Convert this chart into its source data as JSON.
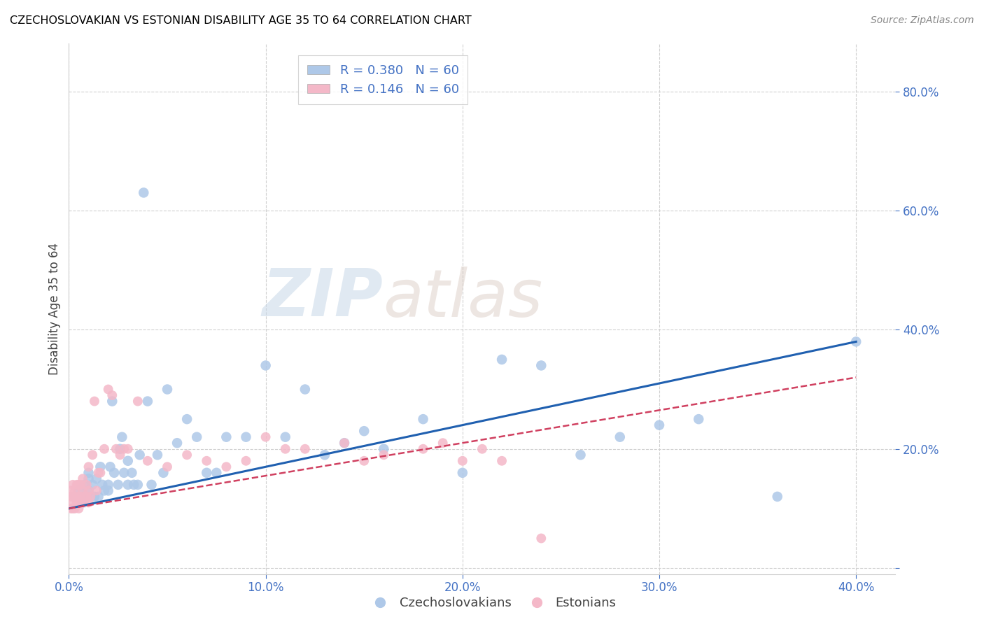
{
  "title": "CZECHOSLOVAKIAN VS ESTONIAN DISABILITY AGE 35 TO 64 CORRELATION CHART",
  "source": "Source: ZipAtlas.com",
  "ylabel": "Disability Age 35 to 64",
  "xlim": [
    0.0,
    0.42
  ],
  "ylim": [
    -0.01,
    0.88
  ],
  "ytick_values": [
    0.0,
    0.2,
    0.4,
    0.6,
    0.8
  ],
  "xtick_values": [
    0.0,
    0.1,
    0.2,
    0.3,
    0.4
  ],
  "blue_R": 0.38,
  "pink_R": 0.146,
  "blue_N": 60,
  "pink_N": 60,
  "blue_color": "#aec8e8",
  "pink_color": "#f4b8c8",
  "blue_line_color": "#2060b0",
  "pink_line_color": "#d04060",
  "grid_color": "#d0d0d0",
  "watermark_zip": "ZIP",
  "watermark_atlas": "atlas",
  "blue_scatter_x": [
    0.003,
    0.005,
    0.007,
    0.008,
    0.009,
    0.01,
    0.01,
    0.01,
    0.012,
    0.013,
    0.014,
    0.015,
    0.016,
    0.017,
    0.018,
    0.02,
    0.02,
    0.021,
    0.022,
    0.023,
    0.025,
    0.026,
    0.027,
    0.028,
    0.03,
    0.03,
    0.032,
    0.033,
    0.035,
    0.036,
    0.038,
    0.04,
    0.042,
    0.045,
    0.048,
    0.05,
    0.055,
    0.06,
    0.065,
    0.07,
    0.075,
    0.08,
    0.09,
    0.1,
    0.11,
    0.12,
    0.13,
    0.14,
    0.15,
    0.16,
    0.18,
    0.2,
    0.22,
    0.24,
    0.26,
    0.28,
    0.3,
    0.32,
    0.36,
    0.4
  ],
  "blue_scatter_y": [
    0.12,
    0.13,
    0.11,
    0.14,
    0.12,
    0.13,
    0.15,
    0.16,
    0.14,
    0.12,
    0.15,
    0.12,
    0.17,
    0.14,
    0.13,
    0.13,
    0.14,
    0.17,
    0.28,
    0.16,
    0.14,
    0.2,
    0.22,
    0.16,
    0.14,
    0.18,
    0.16,
    0.14,
    0.14,
    0.19,
    0.63,
    0.28,
    0.14,
    0.19,
    0.16,
    0.3,
    0.21,
    0.25,
    0.22,
    0.16,
    0.16,
    0.22,
    0.22,
    0.34,
    0.22,
    0.3,
    0.19,
    0.21,
    0.23,
    0.2,
    0.25,
    0.16,
    0.35,
    0.34,
    0.19,
    0.22,
    0.24,
    0.25,
    0.12,
    0.38
  ],
  "pink_scatter_x": [
    0.001,
    0.001,
    0.001,
    0.002,
    0.002,
    0.002,
    0.002,
    0.003,
    0.003,
    0.003,
    0.004,
    0.004,
    0.005,
    0.005,
    0.005,
    0.006,
    0.006,
    0.006,
    0.007,
    0.007,
    0.007,
    0.008,
    0.008,
    0.009,
    0.009,
    0.01,
    0.01,
    0.01,
    0.011,
    0.012,
    0.013,
    0.014,
    0.015,
    0.016,
    0.018,
    0.02,
    0.022,
    0.024,
    0.026,
    0.028,
    0.03,
    0.035,
    0.04,
    0.05,
    0.06,
    0.07,
    0.08,
    0.09,
    0.1,
    0.11,
    0.12,
    0.14,
    0.15,
    0.16,
    0.18,
    0.19,
    0.2,
    0.21,
    0.22,
    0.24
  ],
  "pink_scatter_y": [
    0.1,
    0.12,
    0.13,
    0.1,
    0.11,
    0.12,
    0.14,
    0.1,
    0.12,
    0.13,
    0.11,
    0.14,
    0.1,
    0.12,
    0.14,
    0.11,
    0.12,
    0.14,
    0.11,
    0.13,
    0.15,
    0.11,
    0.12,
    0.12,
    0.14,
    0.11,
    0.13,
    0.17,
    0.12,
    0.19,
    0.28,
    0.13,
    0.16,
    0.16,
    0.2,
    0.3,
    0.29,
    0.2,
    0.19,
    0.2,
    0.2,
    0.28,
    0.18,
    0.17,
    0.19,
    0.18,
    0.17,
    0.18,
    0.22,
    0.2,
    0.2,
    0.21,
    0.18,
    0.19,
    0.2,
    0.21,
    0.18,
    0.2,
    0.18,
    0.05
  ],
  "blue_line_x": [
    0.0,
    0.4
  ],
  "blue_line_y": [
    0.1,
    0.38
  ],
  "pink_line_x": [
    0.0,
    0.4
  ],
  "pink_line_y": [
    0.1,
    0.32
  ]
}
